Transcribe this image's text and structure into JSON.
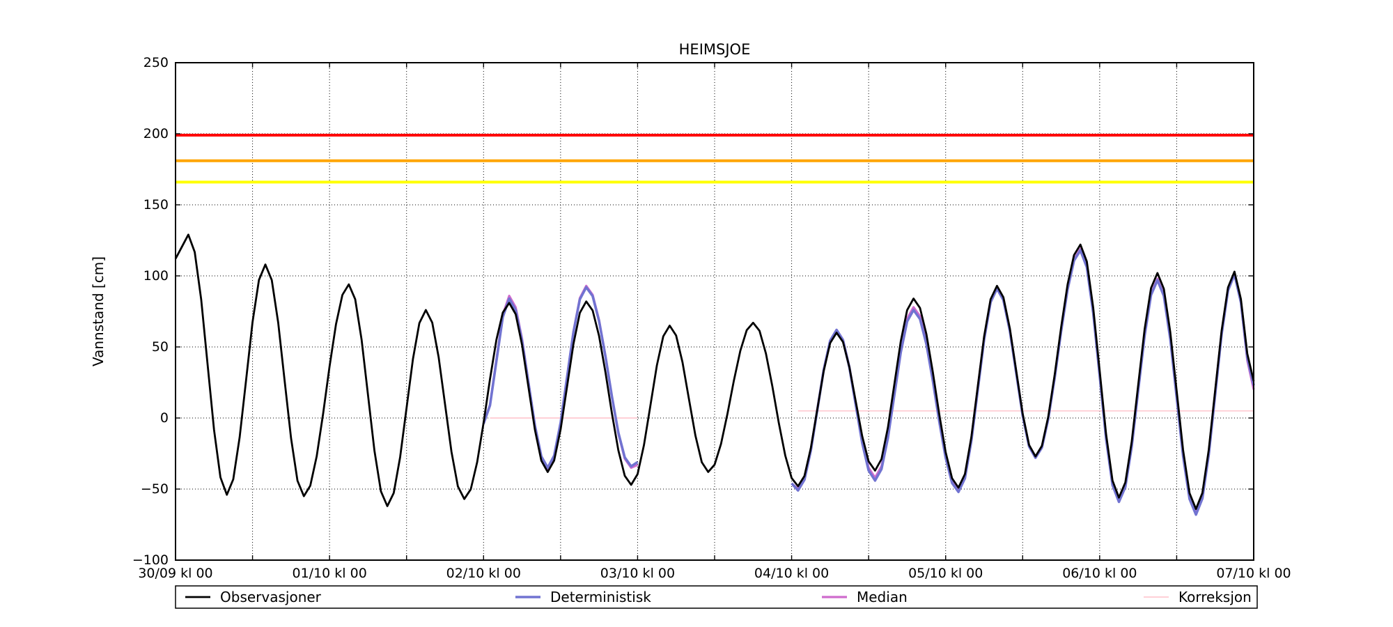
{
  "figure": {
    "title": "HEIMSJOE",
    "ylabel": "Vannstand [cm]"
  },
  "chart_data": {
    "type": "line",
    "title": "HEIMSJOE",
    "xlabel": "",
    "ylabel": "Vannstand [cm]",
    "x_axis": {
      "unit": "days since 30/09 kl 00",
      "range_days": [
        0,
        7
      ],
      "tick_labels": [
        {
          "t": 0,
          "label": "30/09 kl 00"
        },
        {
          "t": 1,
          "label": "01/10 kl 00"
        },
        {
          "t": 2,
          "label": "02/10 kl 00"
        },
        {
          "t": 3,
          "label": "03/10 kl 00"
        },
        {
          "t": 4,
          "label": "04/10 kl 00"
        },
        {
          "t": 5,
          "label": "05/10 kl 00"
        },
        {
          "t": 6,
          "label": "06/10 kl 00"
        },
        {
          "t": 7,
          "label": "07/10 kl 00"
        }
      ],
      "grid_step_hours": 12
    },
    "y_axis": {
      "range": [
        -100,
        250
      ],
      "tick_values": [
        -100,
        -50,
        0,
        50,
        100,
        150,
        200,
        250
      ],
      "tick_labels": [
        "−100",
        "−50",
        "0",
        "50",
        "100",
        "150",
        "200",
        "250"
      ],
      "grid_values": [
        -50,
        0,
        50,
        100,
        150,
        200
      ]
    },
    "grid": {
      "style": "dotted",
      "color": "#000000"
    },
    "threshold_lines": [
      {
        "name": "red-level",
        "value": 199,
        "color": "#ff0000",
        "width": 4
      },
      {
        "name": "orange-level",
        "value": 181,
        "color": "#ffa500",
        "width": 4
      },
      {
        "name": "yellow-level",
        "value": 166,
        "color": "#ffff00",
        "width": 4
      }
    ],
    "series": [
      {
        "name": "Observasjoner",
        "color": "#000000",
        "width": 2.8,
        "mode": "tidal",
        "segments": [
          [
            [
              0,
              112
            ],
            [
              0.0833,
              129
            ],
            [
              0.3333,
              -54
            ],
            [
              0.5833,
              108
            ],
            [
              0.8333,
              -55
            ],
            [
              1.125,
              94
            ],
            [
              1.375,
              -62
            ],
            [
              1.625,
              76
            ],
            [
              1.875,
              -57
            ],
            [
              2.1667,
              81
            ],
            [
              2.4167,
              -38
            ],
            [
              2.6667,
              82
            ],
            [
              2.9583,
              -47
            ],
            [
              3.2083,
              65
            ],
            [
              3.4583,
              -38
            ],
            [
              3.75,
              67
            ],
            [
              4.0417,
              -48
            ],
            [
              4.2917,
              60
            ],
            [
              4.5417,
              -37
            ],
            [
              4.7917,
              84
            ],
            [
              5.0833,
              -49
            ],
            [
              5.3333,
              93
            ],
            [
              5.5833,
              -27
            ],
            [
              5.875,
              122
            ],
            [
              6.125,
              -56
            ],
            [
              6.375,
              102
            ],
            [
              6.625,
              -64
            ],
            [
              6.875,
              103
            ],
            [
              7,
              26
            ]
          ]
        ]
      },
      {
        "name": "Deterministisk",
        "color": "#7173d1",
        "width": 3.6,
        "mode": "tidal",
        "segments": [
          [
            [
              2,
              -4
            ],
            [
              2.1667,
              84
            ],
            [
              2.4167,
              -35
            ],
            [
              2.6667,
              92
            ],
            [
              2.9583,
              -34
            ],
            [
              3,
              -31
            ]
          ],
          [
            [
              4,
              -46
            ],
            [
              4.0417,
              -51
            ],
            [
              4.2917,
              62
            ],
            [
              4.5417,
              -44
            ],
            [
              4.7917,
              76
            ],
            [
              5.0833,
              -52
            ],
            [
              5.3333,
              91
            ],
            [
              5.5833,
              -28
            ],
            [
              5.875,
              118
            ],
            [
              6.125,
              -59
            ],
            [
              6.375,
              97
            ],
            [
              6.625,
              -68
            ],
            [
              6.875,
              101
            ],
            [
              7,
              23
            ]
          ]
        ]
      },
      {
        "name": "Median",
        "color": "#cf6bcd",
        "width": 3.2,
        "mode": "tidal",
        "segments": [
          [
            [
              2,
              -4
            ],
            [
              2.1667,
              86
            ],
            [
              2.4167,
              -36
            ],
            [
              2.6667,
              93
            ],
            [
              2.9583,
              -35
            ],
            [
              3,
              -33
            ]
          ],
          [
            [
              4,
              -46
            ],
            [
              4.0417,
              -50
            ],
            [
              4.2917,
              62
            ],
            [
              4.5417,
              -42
            ],
            [
              4.7917,
              78
            ],
            [
              5.0833,
              -50
            ],
            [
              5.3333,
              92
            ],
            [
              5.5833,
              -28
            ],
            [
              5.875,
              119
            ],
            [
              6.125,
              -58
            ],
            [
              6.375,
              98
            ],
            [
              6.625,
              -66
            ],
            [
              6.875,
              102
            ],
            [
              7,
              20
            ]
          ]
        ]
      },
      {
        "name": "Korreksjon",
        "color": "#ffc1ca",
        "width": 1.4,
        "mode": "linear",
        "segments": [
          [
            [
              2.0417,
              0
            ],
            [
              3,
              0
            ]
          ],
          [
            [
              4.0417,
              5
            ],
            [
              7,
              5
            ]
          ]
        ]
      }
    ],
    "legend": {
      "position": "bottom",
      "labels": [
        "Observasjoner",
        "Deterministisk",
        "Median",
        "Korreksjon"
      ]
    }
  }
}
